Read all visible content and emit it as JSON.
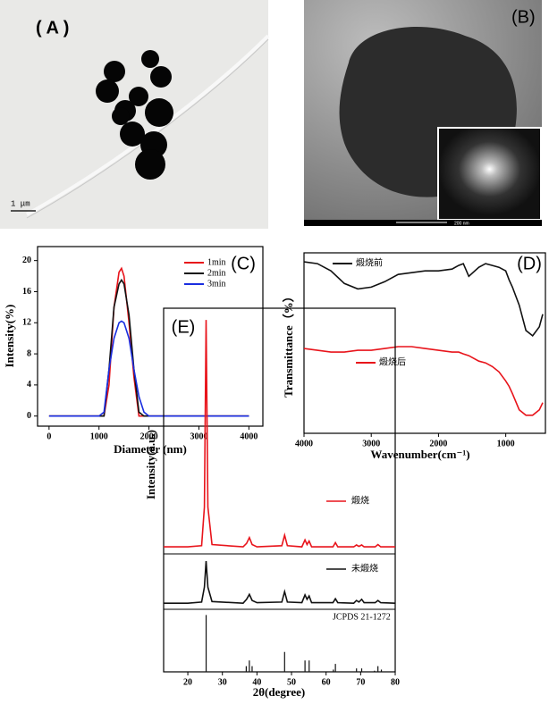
{
  "panels": {
    "a": {
      "label": "( A )",
      "scale_bar": "1 μm"
    },
    "b": {
      "label": "(B)",
      "scale_bar": "200 nm"
    }
  },
  "chart_data": [
    {
      "type": "line",
      "label": "(C)",
      "x_label": "Diameter (nm)",
      "y_label": "Intensity(%)",
      "x": [
        0,
        1000,
        1100,
        1200,
        1300,
        1400,
        1450,
        1500,
        1600,
        1700,
        1800,
        1900,
        2000,
        2100,
        4000
      ],
      "series": [
        {
          "name": "1min",
          "color": "#e8141b",
          "values": [
            0,
            0,
            0,
            4,
            14,
            18.5,
            19,
            18,
            12,
            5,
            0,
            0,
            0,
            0,
            0
          ]
        },
        {
          "name": "2min",
          "color": "#111111",
          "values": [
            0,
            0,
            0,
            6,
            14,
            17,
            17.5,
            17,
            13,
            6,
            0.5,
            0,
            0,
            0,
            0
          ]
        },
        {
          "name": "3min",
          "color": "#1a2ee0",
          "values": [
            0,
            0,
            0.5,
            6,
            10,
            12,
            12.2,
            12,
            10,
            6,
            2.5,
            0.5,
            0,
            0,
            0
          ]
        }
      ],
      "xlim": [
        -230,
        4280
      ],
      "xticks": [
        0,
        1000,
        2000,
        3000,
        4000
      ],
      "ylim": [
        -1.3,
        21.8
      ],
      "yticks": [
        0,
        4,
        8,
        12,
        16,
        20
      ],
      "legend": "upper right"
    },
    {
      "type": "line",
      "label": "(D)",
      "x_label": "Wavenumber(cm⁻¹)",
      "y_label": "Transmittance（%）",
      "x": [
        4000,
        3800,
        3600,
        3400,
        3200,
        3000,
        2800,
        2600,
        2400,
        2200,
        2000,
        1800,
        1700,
        1630,
        1550,
        1400,
        1300,
        1200,
        1100,
        1000,
        950,
        900,
        800,
        700,
        600,
        500,
        450
      ],
      "series": [
        {
          "name": "煅烧前",
          "color": "#111111",
          "values": [
            95,
            94,
            90,
            83,
            80,
            81,
            84,
            88,
            89,
            90,
            90,
            91,
            93,
            94,
            87,
            92,
            94,
            93,
            92,
            90,
            85,
            81,
            71,
            57,
            54,
            59,
            66
          ]
        },
        {
          "name": "煅烧后",
          "color": "#e8141b",
          "values": [
            47,
            46,
            45,
            45,
            46,
            46,
            47,
            48,
            48,
            47,
            46,
            45,
            45,
            44,
            43,
            40,
            39,
            37,
            34,
            29,
            26,
            22,
            13,
            10,
            10,
            13,
            17
          ]
        }
      ],
      "xlim": [
        4000,
        410
      ],
      "xticks": [
        4000,
        3000,
        2000,
        1000
      ],
      "ylim": [
        0,
        100
      ]
    },
    {
      "type": "xrd",
      "label": "(E)",
      "x_label": "2θ(degree)",
      "y_label": "Intensity(a.u.)",
      "x": [
        13,
        20,
        24,
        24.8,
        25.3,
        25.8,
        27,
        36,
        37,
        37.8,
        38.6,
        40,
        47.2,
        48,
        48.8,
        53,
        53.9,
        54.5,
        55.1,
        55.8,
        62,
        62.7,
        63.4,
        68,
        68.8,
        69.5,
        70.3,
        71,
        74.2,
        75,
        75.8,
        80
      ],
      "series": [
        {
          "name": "煅烧",
          "color": "#e8141b",
          "ylim": [
            0,
            105
          ],
          "values": [
            3,
            3,
            3.5,
            20,
            100,
            20,
            4,
            3,
            4.5,
            7,
            4,
            3,
            3.5,
            8,
            3.5,
            3,
            6,
            4,
            5.5,
            3,
            3,
            4.8,
            3,
            3,
            3.8,
            3.2,
            3.8,
            3,
            3,
            4,
            3,
            3
          ]
        },
        {
          "name": "未煅烧",
          "color": "#111111",
          "ylim": [
            0,
            100
          ],
          "values": [
            11,
            11,
            13,
            40,
            87,
            40,
            14,
            11,
            18,
            27,
            16,
            12,
            13,
            32,
            13,
            12,
            26,
            18,
            24,
            12,
            12,
            19,
            12,
            11,
            16,
            13,
            18,
            12,
            12,
            16,
            12,
            11
          ]
        }
      ],
      "reference": {
        "name": "JCPDS 21-1272",
        "color": "#111111",
        "ylim": [
          0,
          110
        ],
        "x": [
          25.3,
          36.9,
          37.8,
          38.6,
          48.0,
          53.9,
          55.1,
          62.1,
          62.7,
          68.8,
          70.3,
          74.0,
          75.0,
          76.0
        ],
        "values": [
          100,
          10,
          20,
          10,
          35,
          20,
          20,
          4,
          14,
          6,
          6,
          2,
          10,
          4
        ]
      },
      "xlim": [
        13,
        80
      ],
      "xticks": [
        20,
        30,
        40,
        50,
        60,
        70,
        80
      ]
    }
  ]
}
